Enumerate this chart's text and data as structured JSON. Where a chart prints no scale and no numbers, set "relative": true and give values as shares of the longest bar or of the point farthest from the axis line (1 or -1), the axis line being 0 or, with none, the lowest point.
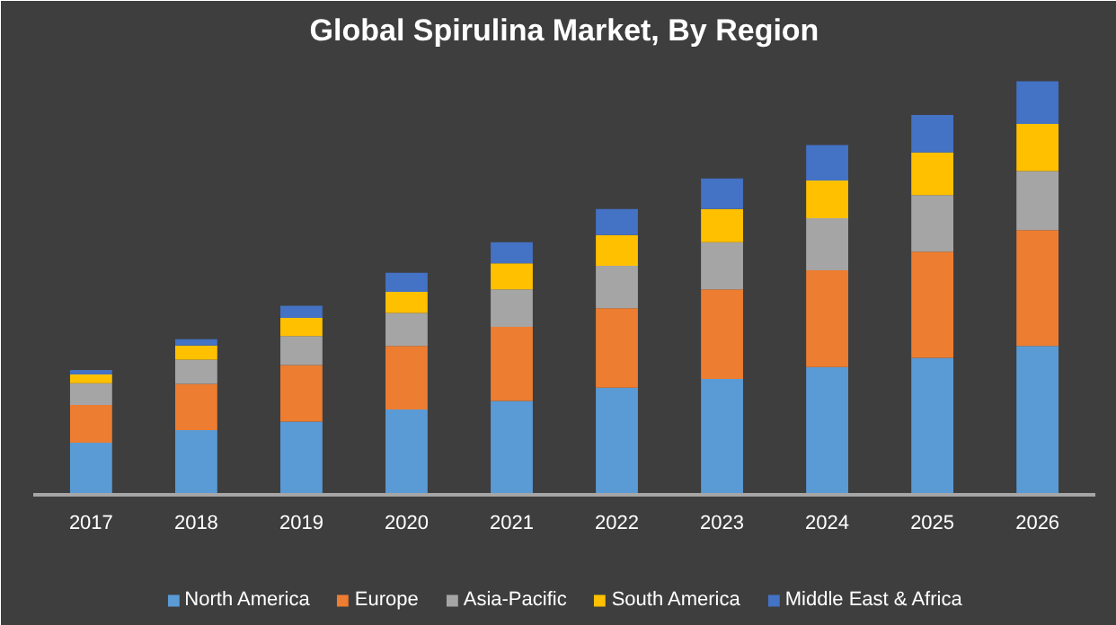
{
  "chart_data": {
    "type": "bar",
    "title": "Global Spirulina Market, By Region",
    "relative": true,
    "stacked": true,
    "legend": "bottom",
    "categories": [
      "2017",
      "2018",
      "2019",
      "2020",
      "2021",
      "2022",
      "2023",
      "2024",
      "2025",
      "2026"
    ],
    "series": [
      {
        "name": "North America",
        "color": "#5b9bd5",
        "values": [
          0.126,
          0.156,
          0.177,
          0.206,
          0.227,
          0.259,
          0.28,
          0.309,
          0.331,
          0.36
        ]
      },
      {
        "name": "Europe",
        "color": "#ed7d31",
        "values": [
          0.091,
          0.112,
          0.137,
          0.154,
          0.179,
          0.192,
          0.217,
          0.234,
          0.257,
          0.28
        ]
      },
      {
        "name": "Asia-Pacific",
        "color": "#a5a5a5",
        "values": [
          0.053,
          0.059,
          0.07,
          0.08,
          0.091,
          0.103,
          0.114,
          0.126,
          0.137,
          0.143
        ]
      },
      {
        "name": "South America",
        "color": "#ffc000",
        "values": [
          0.021,
          0.034,
          0.044,
          0.051,
          0.063,
          0.074,
          0.08,
          0.091,
          0.103,
          0.114
        ]
      },
      {
        "name": "Middle East & Africa",
        "color": "#4472c4",
        "values": [
          0.011,
          0.015,
          0.029,
          0.046,
          0.051,
          0.063,
          0.074,
          0.086,
          0.091,
          0.103
        ]
      }
    ]
  }
}
